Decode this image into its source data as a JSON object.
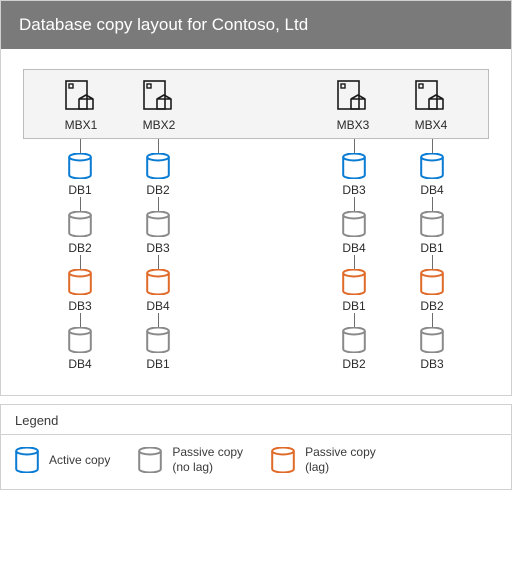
{
  "title": "Database copy layout for Contoso, Ltd",
  "colors": {
    "title_bg": "#7a7a7a",
    "title_fg": "#ffffff",
    "panel_border": "#d0d0d0",
    "server_bg": "#f4f4f4",
    "server_border": "#bcbcbc",
    "label": "#2b2b2b",
    "connector": "#6d6d6d",
    "active": "#0a7cd4",
    "passive": "#8a8a8a",
    "lag": "#e06a2a",
    "icon_stroke": "#1a1a1a"
  },
  "servers": [
    {
      "name": "MBX1",
      "group": "left"
    },
    {
      "name": "MBX2",
      "group": "left"
    },
    {
      "name": "MBX3",
      "group": "right"
    },
    {
      "name": "MBX4",
      "group": "right"
    }
  ],
  "db_rows": [
    [
      {
        "label": "DB1",
        "state": "active"
      },
      {
        "label": "DB2",
        "state": "active"
      },
      {
        "label": "DB3",
        "state": "active"
      },
      {
        "label": "DB4",
        "state": "active"
      }
    ],
    [
      {
        "label": "DB2",
        "state": "passive"
      },
      {
        "label": "DB3",
        "state": "passive"
      },
      {
        "label": "DB4",
        "state": "passive"
      },
      {
        "label": "DB1",
        "state": "passive"
      }
    ],
    [
      {
        "label": "DB3",
        "state": "lag"
      },
      {
        "label": "DB4",
        "state": "lag"
      },
      {
        "label": "DB1",
        "state": "lag"
      },
      {
        "label": "DB2",
        "state": "lag"
      }
    ],
    [
      {
        "label": "DB4",
        "state": "passive"
      },
      {
        "label": "DB1",
        "state": "passive"
      },
      {
        "label": "DB2",
        "state": "passive"
      },
      {
        "label": "DB3",
        "state": "passive"
      }
    ]
  ],
  "legend": {
    "title": "Legend",
    "items": [
      {
        "state": "active",
        "text": "Active copy"
      },
      {
        "state": "passive",
        "text": "Passive copy\n(no lag)"
      },
      {
        "state": "lag",
        "text": "Passive copy\n(lag)"
      }
    ]
  }
}
